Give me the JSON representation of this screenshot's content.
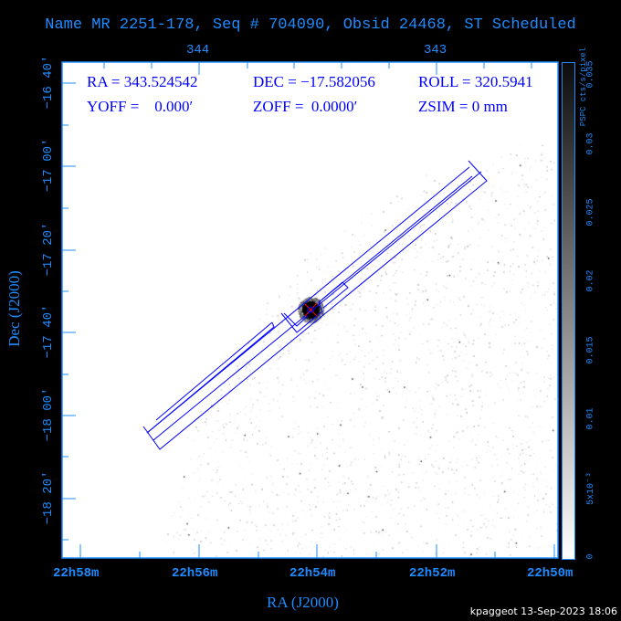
{
  "chart_data": {
    "type": "heatmap",
    "title": "Name MR 2251-178, Seq # 704090, Obsid 24468, ST Scheduled",
    "xlabel": "RA (J2000)",
    "ylabel": "Dec (J2000)",
    "x_ticks": [
      "22h58m",
      "22h56m",
      "22h54m",
      "22h52m",
      "22h50m"
    ],
    "top_ticks": [
      "344",
      "343"
    ],
    "y_ticks": [
      "−18 20′",
      "−18 00′",
      "−17 40′",
      "−17 20′",
      "−17 00′",
      "−16 40′"
    ],
    "colorbar": {
      "label": "PSPC cts/s/pixel",
      "ticks": [
        "0",
        "5x10⁻³",
        "0.01",
        "0.015",
        "0.02",
        "0.025",
        "0.03",
        "0.035"
      ],
      "tick_values": [
        0,
        0.005,
        0.01,
        0.015,
        0.02,
        0.025,
        0.03,
        0.035
      ],
      "range": [
        0,
        0.036
      ],
      "colormap": "white-to-black"
    },
    "overlay_color": "#0000ff",
    "target_marker_color": "#ff0000"
  },
  "info": {
    "ra": "RA = 343.524542",
    "dec": "DEC = −17.582056",
    "roll": "ROLL = 320.5941",
    "yoff": "YOFF =    0.000′",
    "zoff": "ZOFF =  0.0000′",
    "zsim": "ZSIM = 0 mm"
  },
  "footer": "kpaggeot 13-Sep-2023 18:06"
}
